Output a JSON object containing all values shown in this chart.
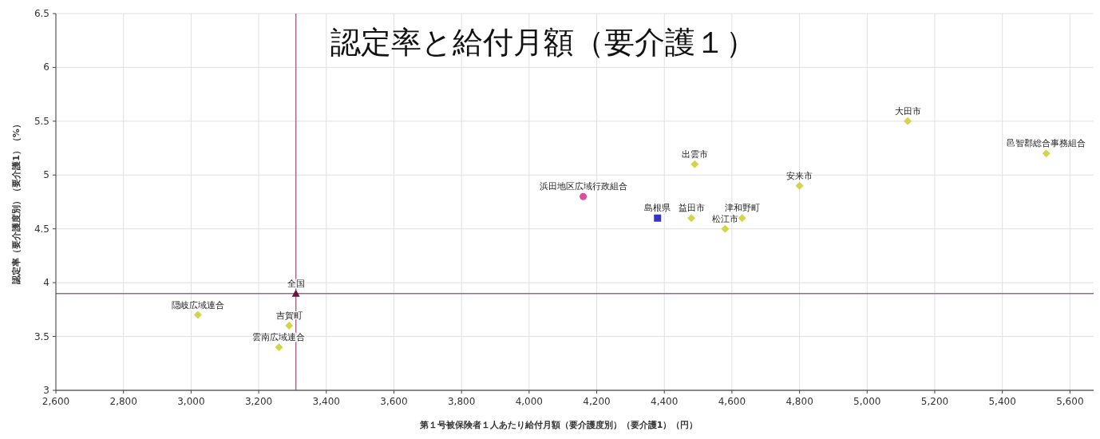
{
  "chart_data": {
    "type": "scatter",
    "title": "認定率と給付月額（要介護１）",
    "xlabel": "第１号被保険者１人あたり給付月額（要介護度別）（要介護1）（円）",
    "ylabel": "認定率（要介護度別）（要介護1）（%）",
    "xlim": [
      2600,
      5670
    ],
    "xticks": [
      {
        "value": 2600,
        "label": "2,600"
      },
      {
        "value": 2800,
        "label": "2,800"
      },
      {
        "value": 3000,
        "label": "3,000"
      },
      {
        "value": 3200,
        "label": "3,200"
      },
      {
        "value": 3400,
        "label": "3,400"
      },
      {
        "value": 3600,
        "label": "3,600"
      },
      {
        "value": 3800,
        "label": "3,800"
      },
      {
        "value": 4000,
        "label": "4,000"
      },
      {
        "value": 4200,
        "label": "4,200"
      },
      {
        "value": 4400,
        "label": "4,400"
      },
      {
        "value": 4600,
        "label": "4,600"
      },
      {
        "value": 4800,
        "label": "4,800"
      },
      {
        "value": 5000,
        "label": "5,000"
      },
      {
        "value": 5200,
        "label": "5,200"
      },
      {
        "value": 5400,
        "label": "5,400"
      },
      {
        "value": 5600,
        "label": "5,600"
      }
    ],
    "ylim": [
      3,
      6.5
    ],
    "yticks": [
      3,
      3.5,
      4,
      4.5,
      5,
      5.5,
      6,
      6.5
    ],
    "grid": true,
    "series": [
      {
        "color": "#d4d44a",
        "marker": "diamond",
        "x": [
          3020,
          3260,
          3290,
          4480,
          4630,
          4580,
          4490,
          4800,
          5120,
          5530
        ],
        "values": [
          3.7,
          3.4,
          3.6,
          4.6,
          4.6,
          4.5,
          5.1,
          4.9,
          5.5,
          5.2
        ]
      },
      {
        "color": "#d94f9c",
        "marker": "circle",
        "x": [
          4160
        ],
        "values": [
          4.8
        ]
      },
      {
        "color": "#3333cc",
        "marker": "square",
        "x": [
          4380
        ],
        "values": [
          4.6
        ]
      },
      {
        "color": "#6b1040",
        "marker": "triangle",
        "x": [
          3310
        ],
        "values": [
          3.9
        ]
      }
    ],
    "ref_lines": [
      {
        "axis": "x",
        "value": 3310,
        "color": "#9a6a8e"
      },
      {
        "axis": "y",
        "value": 3.9,
        "color": "#9a6a8e"
      }
    ],
    "annotations": [
      {
        "text": "隠岐広域連合",
        "x": 3020,
        "y": 3.7
      },
      {
        "text": "雲南広域連合",
        "x": 3260,
        "y": 3.4
      },
      {
        "text": "吉賀町",
        "x": 3290,
        "y": 3.6
      },
      {
        "text": "全国",
        "x": 3310,
        "y": 3.9
      },
      {
        "text": "浜田地区広域行政組合",
        "x": 4160,
        "y": 4.8
      },
      {
        "text": "島根県",
        "x": 4380,
        "y": 4.6
      },
      {
        "text": "益田市",
        "x": 4480,
        "y": 4.6
      },
      {
        "text": "津和野町",
        "x": 4630,
        "y": 4.6
      },
      {
        "text": "松江市",
        "x": 4580,
        "y": 4.5
      },
      {
        "text": "出雲市",
        "x": 4490,
        "y": 5.1
      },
      {
        "text": "安来市",
        "x": 4800,
        "y": 4.9
      },
      {
        "text": "大田市",
        "x": 5120,
        "y": 5.5
      },
      {
        "text": "邑智郡総合事務組合",
        "x": 5530,
        "y": 5.2
      }
    ]
  }
}
